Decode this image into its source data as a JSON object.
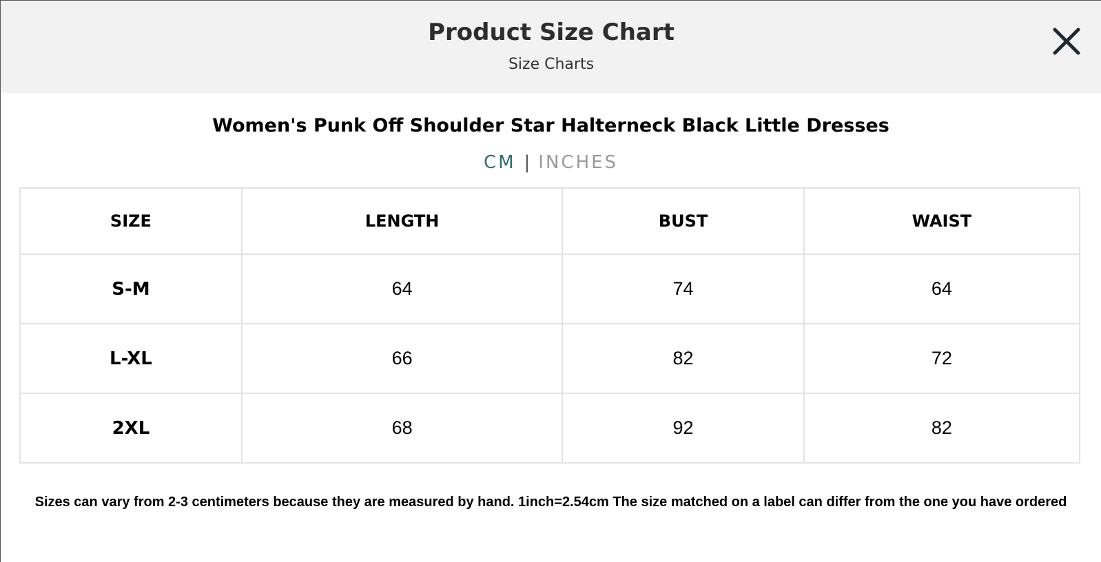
{
  "header": {
    "title": "Product Size Chart",
    "subtitle": "Size Charts"
  },
  "icons": {
    "close": "close-icon"
  },
  "product": {
    "title": "Women's Punk Off Shoulder Star Halterneck Black Little Dresses"
  },
  "units": {
    "cm_label": "CM",
    "separator": "|",
    "inches_label": "INCHES",
    "active": "CM",
    "active_color": "#2f6f73",
    "inactive_color": "#9a9a9a"
  },
  "table": {
    "headers": [
      "SIZE",
      "LENGTH",
      "BUST",
      "WAIST"
    ],
    "rows": [
      [
        "S-M",
        "64",
        "74",
        "64"
      ],
      [
        "L-XL",
        "66",
        "82",
        "72"
      ],
      [
        "2XL",
        "68",
        "92",
        "82"
      ]
    ]
  },
  "note": "Sizes can vary from 2-3 centimeters because they are measured by hand. 1inch=2.54cm The size matched on a label can differ from the one you have ordered"
}
